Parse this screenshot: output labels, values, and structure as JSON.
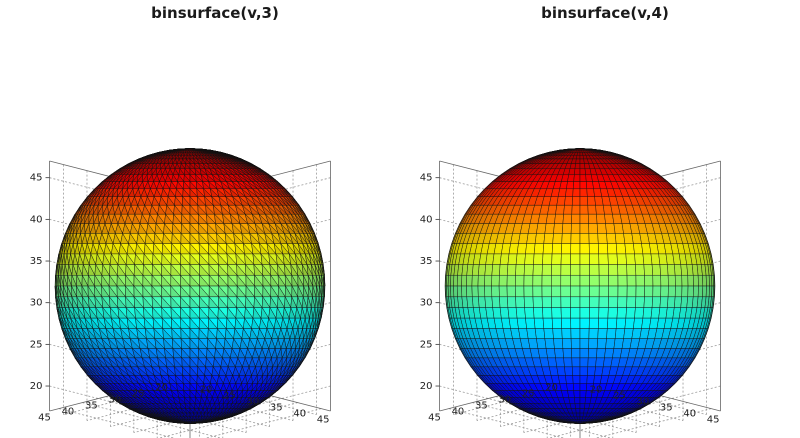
{
  "chart_data": [
    {
      "type": "surface3d",
      "title": "binsurface(v,3)",
      "mesh_style": "triangles",
      "colormap": "jet",
      "grid": true,
      "zlim": [
        17,
        47
      ],
      "xlim": [
        17,
        47
      ],
      "ylim": [
        17,
        47
      ],
      "z_ticks": [
        "20",
        "25",
        "30",
        "35",
        "40",
        "45"
      ],
      "x_ticks": [
        "20",
        "25",
        "30",
        "35",
        "40",
        "45"
      ],
      "y_ticks": [
        "20",
        "25",
        "30",
        "35",
        "40",
        "45"
      ],
      "shape": {
        "center": [
          32,
          32,
          32
        ],
        "radius": 15
      }
    },
    {
      "type": "surface3d",
      "title": "binsurface(v,4)",
      "mesh_style": "quads",
      "colormap": "jet",
      "grid": true,
      "zlim": [
        17,
        47
      ],
      "xlim": [
        17,
        47
      ],
      "ylim": [
        17,
        47
      ],
      "z_ticks": [
        "20",
        "25",
        "30",
        "35",
        "40",
        "45"
      ],
      "x_ticks": [
        "20",
        "25",
        "30",
        "35",
        "40",
        "45"
      ],
      "y_ticks": [
        "20",
        "25",
        "30",
        "35",
        "40",
        "45"
      ],
      "shape": {
        "center": [
          32,
          32,
          32
        ],
        "radius": 15
      }
    }
  ]
}
